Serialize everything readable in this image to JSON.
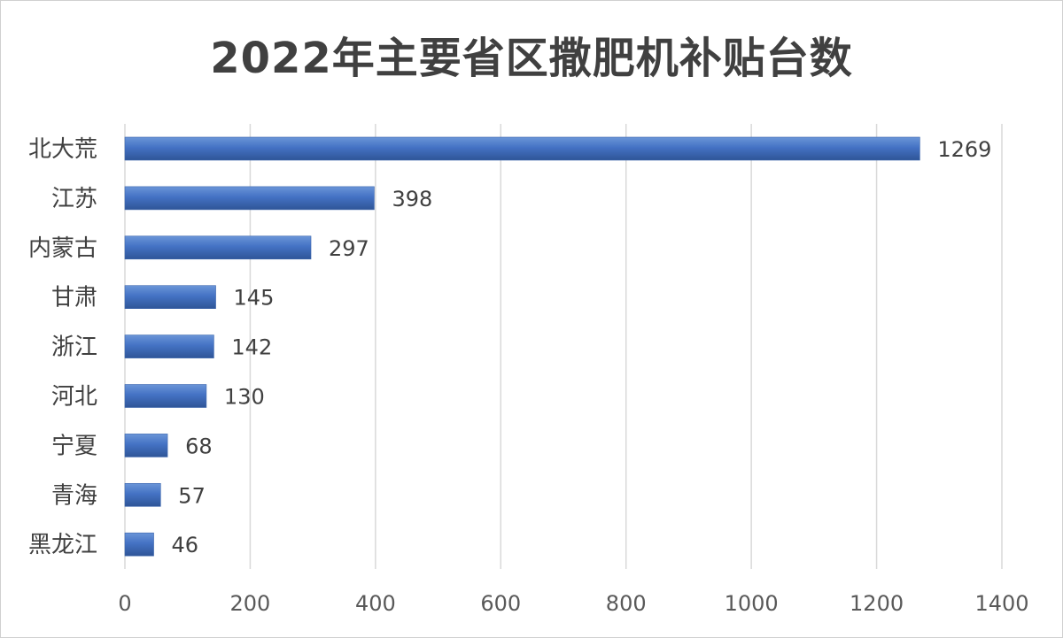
{
  "chart_data": {
    "type": "bar",
    "orientation": "horizontal",
    "title": "2022年主要省区撒肥机补贴台数",
    "categories": [
      "北大荒",
      "江苏",
      "内蒙古",
      "甘肃",
      "浙江",
      "河北",
      "宁夏",
      "青海",
      "黑龙江"
    ],
    "values": [
      1269,
      398,
      297,
      145,
      142,
      130,
      68,
      57,
      46
    ],
    "xlim": [
      0,
      1400
    ],
    "xticks": [
      0,
      200,
      400,
      600,
      800,
      1000,
      1200,
      1400
    ],
    "grid": true,
    "legend": "none",
    "bar_color": "#4472C4",
    "data_labels": true
  }
}
